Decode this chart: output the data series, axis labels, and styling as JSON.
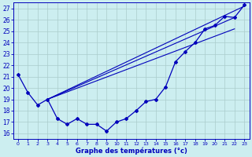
{
  "title": "Graphe des températures (°c)",
  "bg_color": "#cceef0",
  "line_color": "#0000bb",
  "grid_color": "#aacccc",
  "ylim": [
    15.5,
    27.5
  ],
  "xlim": [
    -0.5,
    23.5
  ],
  "yticks": [
    16,
    17,
    18,
    19,
    20,
    21,
    22,
    23,
    24,
    25,
    26,
    27
  ],
  "xticks": [
    0,
    1,
    2,
    3,
    4,
    5,
    6,
    7,
    8,
    9,
    10,
    11,
    12,
    13,
    14,
    15,
    16,
    17,
    18,
    19,
    20,
    21,
    22,
    23
  ],
  "hours": [
    0,
    1,
    2,
    3,
    4,
    5,
    6,
    7,
    8,
    9,
    10,
    11,
    12,
    13,
    14,
    15,
    16,
    17,
    18,
    19,
    20,
    21,
    22,
    23
  ],
  "temp_curve": [
    21.2,
    19.6,
    18.5,
    19.0,
    17.3,
    16.8,
    17.3,
    16.8,
    16.8,
    16.2,
    17.0,
    17.3,
    18.0,
    18.8,
    19.0,
    20.1,
    22.3,
    23.2,
    24.0,
    25.2,
    25.5,
    26.3,
    26.2,
    27.3
  ],
  "line1": [
    [
      3,
      19.0
    ],
    [
      22,
      26.2
    ]
  ],
  "line2": [
    [
      3,
      19.0
    ],
    [
      23,
      27.2
    ]
  ],
  "line3": [
    [
      3,
      19.0
    ],
    [
      22,
      25.2
    ]
  ]
}
